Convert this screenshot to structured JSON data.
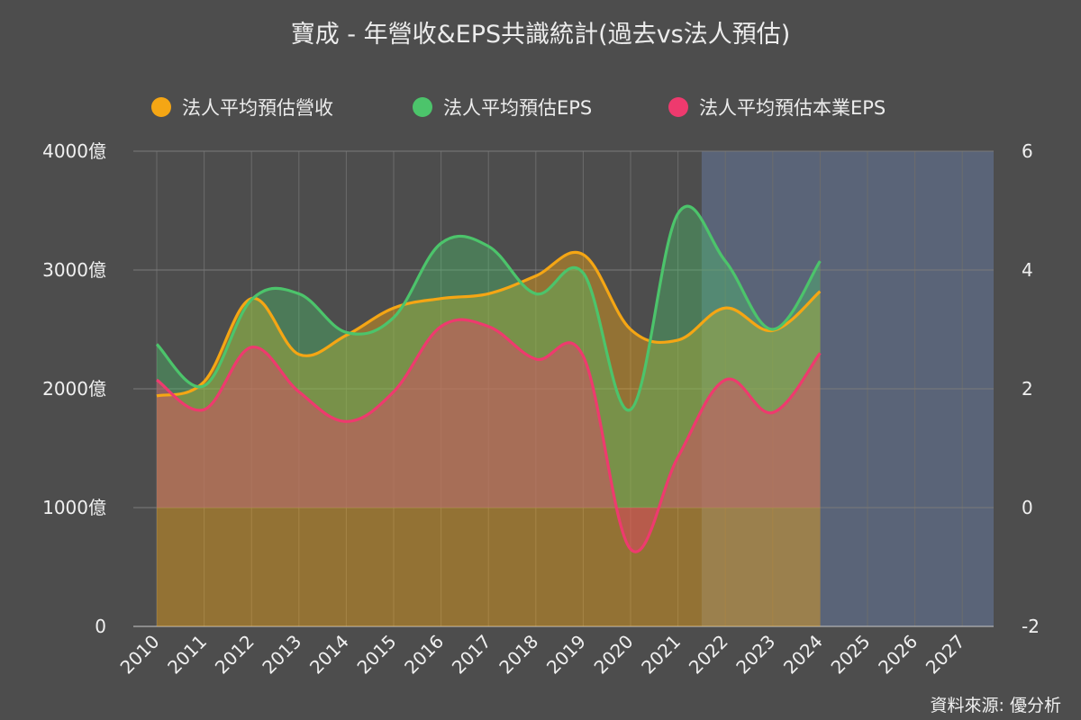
{
  "chart_title": "寶成 - 年營收&EPS共識統計(過去vs法人預估)",
  "source_note": "資料來源: 優分析",
  "colors": {
    "background": "#4d4d4d",
    "revenue": "#f5a614",
    "eps": "#4cc46b",
    "core_eps": "#ee3a6e",
    "forecast_region": "#5a6478"
  },
  "chart_data": {
    "type": "line",
    "categories": [
      "2010",
      "2011",
      "2012",
      "2013",
      "2014",
      "2015",
      "2016",
      "2017",
      "2018",
      "2019",
      "2020",
      "2021",
      "2022",
      "2023",
      "2024",
      "2025",
      "2026",
      "2027"
    ],
    "y_left": {
      "unit": "億",
      "ylim": [
        0,
        4000
      ],
      "ticks": [
        "0",
        "1000億",
        "2000億",
        "3000億",
        "4000億"
      ]
    },
    "y_right": {
      "ylim": [
        -2,
        6
      ],
      "ticks": [
        "-2",
        "0",
        "2",
        "4",
        "6"
      ]
    },
    "forecast_shade_from": "2022",
    "grid": true,
    "legend_position": "top",
    "series": [
      {
        "name": "法人平均預估營收",
        "axis": "left",
        "values": [
          1940,
          2060,
          2760,
          2290,
          2450,
          2680,
          2760,
          2800,
          2950,
          3130,
          2500,
          2410,
          2680,
          2490,
          2820,
          null,
          null,
          null
        ]
      },
      {
        "name": "法人平均預估EPS",
        "axis": "right",
        "values": [
          2.75,
          2.05,
          3.5,
          3.6,
          2.95,
          3.2,
          4.45,
          4.4,
          3.6,
          3.95,
          1.65,
          4.95,
          4.15,
          3.0,
          4.15,
          null,
          null,
          null
        ]
      },
      {
        "name": "法人平均預估本業EPS",
        "axis": "right",
        "values": [
          2.15,
          1.65,
          2.7,
          1.95,
          1.45,
          1.95,
          3.05,
          3.05,
          2.5,
          2.55,
          -0.7,
          0.85,
          2.15,
          1.6,
          2.6,
          null,
          null,
          null
        ]
      }
    ]
  }
}
